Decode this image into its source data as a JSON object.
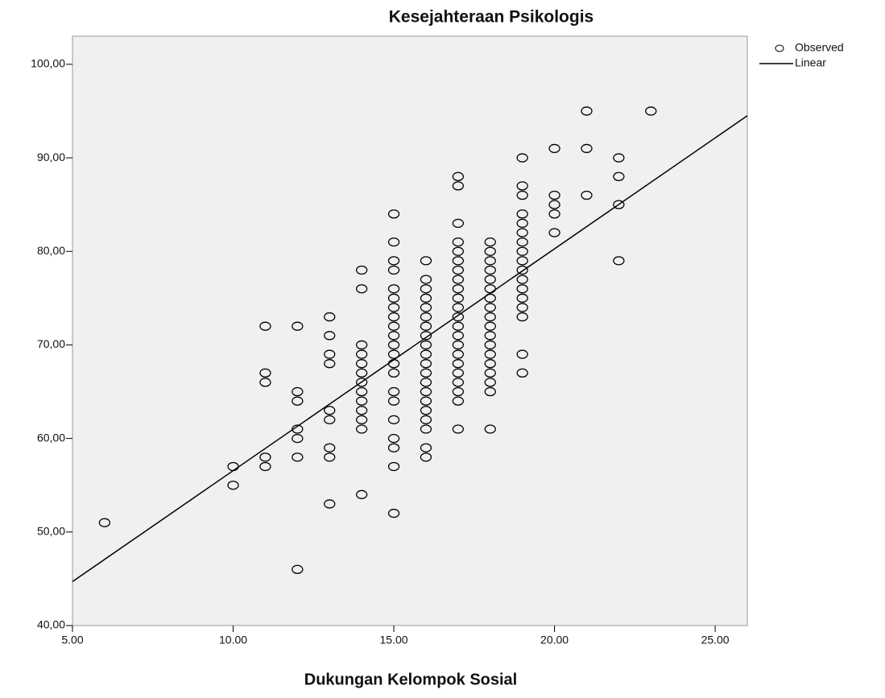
{
  "chart_data": {
    "type": "scatter",
    "title": "Kesejahteraan Psikologis",
    "x_label": "Dukungan Kelompok Sosial",
    "xlim": [
      5,
      26
    ],
    "ylim": [
      40,
      103
    ],
    "xticks": [
      {
        "value": 5,
        "label": "5.00"
      },
      {
        "value": 10,
        "label": "10.00"
      },
      {
        "value": 15,
        "label": "15.00"
      },
      {
        "value": 20,
        "label": "20.00"
      },
      {
        "value": 25,
        "label": "25.00"
      }
    ],
    "yticks": [
      {
        "value": 40,
        "label": "40,00"
      },
      {
        "value": 50,
        "label": "50,00"
      },
      {
        "value": 60,
        "label": "60,00"
      },
      {
        "value": 70,
        "label": "70,00"
      },
      {
        "value": 80,
        "label": "80,00"
      },
      {
        "value": 90,
        "label": "90,00"
      },
      {
        "value": 100,
        "label": "100,00"
      }
    ],
    "legend": "right",
    "series": [
      {
        "name": "Observed",
        "mode": "markers",
        "color": "#000000",
        "x": [
          6,
          10,
          10,
          11,
          11,
          11,
          11,
          11,
          12,
          12,
          12,
          12,
          12,
          12,
          12,
          13,
          13,
          13,
          13,
          13,
          13,
          13,
          13,
          13,
          14,
          14,
          14,
          14,
          14,
          14,
          14,
          14,
          14,
          14,
          14,
          14,
          14,
          15,
          15,
          15,
          15,
          15,
          15,
          15,
          15,
          15,
          15,
          15,
          15,
          15,
          15,
          15,
          15,
          15,
          15,
          15,
          15,
          15,
          16,
          16,
          16,
          16,
          16,
          16,
          16,
          16,
          16,
          16,
          16,
          16,
          16,
          16,
          16,
          16,
          16,
          16,
          16,
          16,
          17,
          17,
          17,
          17,
          17,
          17,
          17,
          17,
          17,
          17,
          17,
          17,
          17,
          17,
          17,
          17,
          17,
          17,
          17,
          17,
          17,
          17,
          18,
          18,
          18,
          18,
          18,
          18,
          18,
          18,
          18,
          18,
          18,
          18,
          18,
          18,
          18,
          18,
          18,
          18,
          19,
          19,
          19,
          19,
          19,
          19,
          19,
          19,
          19,
          19,
          19,
          19,
          19,
          19,
          19,
          19,
          19,
          20,
          20,
          20,
          20,
          20,
          21,
          21,
          21,
          22,
          22,
          22,
          22,
          23
        ],
        "values": [
          51,
          57,
          55,
          72,
          67,
          66,
          58,
          57,
          72,
          65,
          64,
          61,
          60,
          58,
          46,
          73,
          71,
          69,
          68,
          63,
          62,
          59,
          58,
          53,
          78,
          76,
          70,
          69,
          68,
          67,
          66,
          65,
          64,
          63,
          62,
          61,
          54,
          84,
          81,
          79,
          78,
          76,
          75,
          74,
          73,
          72,
          71,
          70,
          69,
          68,
          67,
          65,
          64,
          62,
          60,
          59,
          57,
          52,
          79,
          77,
          76,
          75,
          74,
          73,
          72,
          71,
          70,
          69,
          68,
          67,
          66,
          65,
          64,
          63,
          62,
          61,
          59,
          58,
          88,
          87,
          83,
          81,
          80,
          79,
          78,
          77,
          76,
          75,
          74,
          73,
          72,
          71,
          70,
          69,
          68,
          67,
          66,
          65,
          64,
          61,
          81,
          80,
          79,
          78,
          77,
          76,
          75,
          74,
          73,
          72,
          71,
          70,
          69,
          68,
          67,
          66,
          65,
          61,
          90,
          87,
          86,
          84,
          83,
          82,
          81,
          80,
          79,
          78,
          77,
          76,
          75,
          74,
          73,
          69,
          67,
          91,
          86,
          85,
          84,
          82,
          95,
          91,
          86,
          90,
          88,
          85,
          79,
          95
        ]
      },
      {
        "name": "Linear",
        "mode": "line",
        "color": "#000000",
        "x": [
          5,
          26
        ],
        "values": [
          44.7,
          94.5
        ]
      }
    ]
  }
}
